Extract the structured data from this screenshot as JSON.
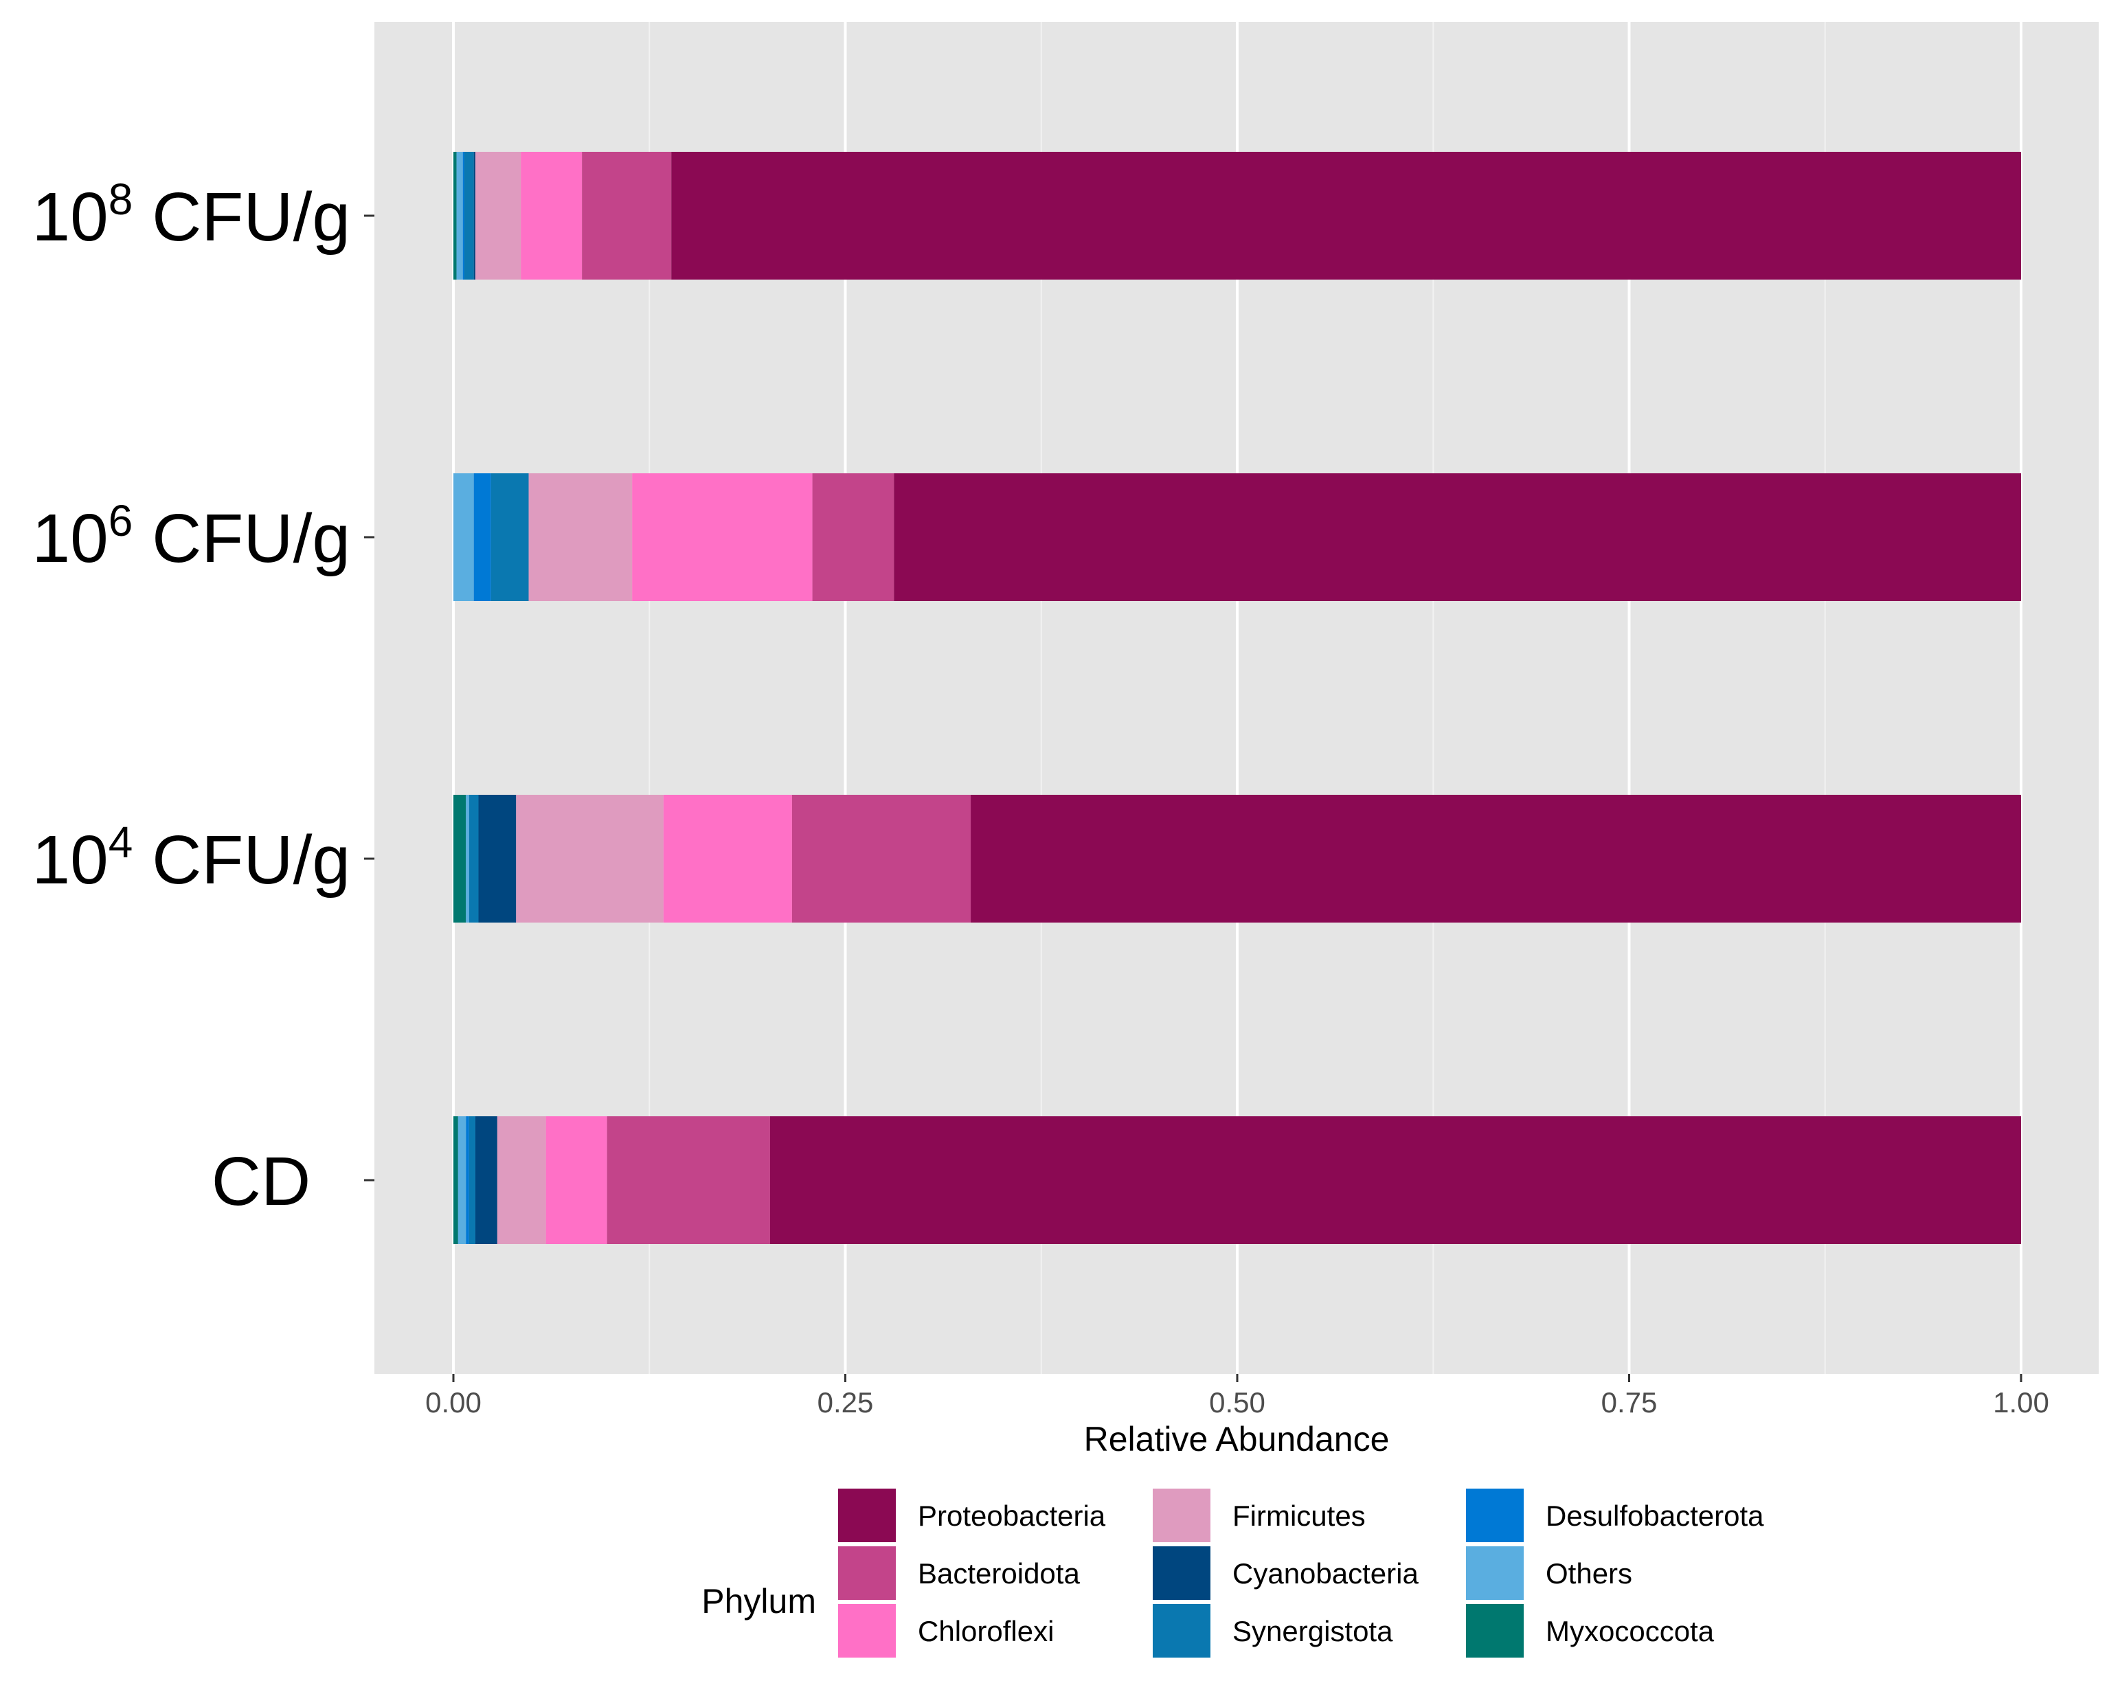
{
  "chart_data": {
    "type": "bar",
    "orientation": "horizontal",
    "stacked": true,
    "categories": [
      {
        "base": "10",
        "sup": "8",
        "suffix": " CFU/g"
      },
      {
        "base": "10",
        "sup": "6",
        "suffix": " CFU/g"
      },
      {
        "base": "10",
        "sup": "4",
        "suffix": " CFU/g"
      },
      {
        "base": "CD",
        "sup": "",
        "suffix": ""
      }
    ],
    "xlabel": "Relative Abundance",
    "xlim": [
      0,
      1
    ],
    "xticks": [
      "0.00",
      "0.25",
      "0.50",
      "0.75",
      "1.00"
    ],
    "grid": true,
    "legend": {
      "title": "Phylum",
      "position": "bottom"
    },
    "series": [
      {
        "name": "Myxococcota",
        "color": "#00786f",
        "values": [
          0.002,
          0.0,
          0.008,
          0.003
        ]
      },
      {
        "name": "Others",
        "color": "#5aaee0",
        "values": [
          0.004,
          0.013,
          0.002,
          0.005
        ]
      },
      {
        "name": "Desulfobacterota",
        "color": "#0079d5",
        "values": [
          0.001,
          0.011,
          0.0,
          0.002
        ]
      },
      {
        "name": "Synergistota",
        "color": "#0a78b0",
        "values": [
          0.006,
          0.024,
          0.006,
          0.004
        ]
      },
      {
        "name": "Cyanobacteria",
        "color": "#00467f",
        "values": [
          0.001,
          0.0,
          0.024,
          0.014
        ]
      },
      {
        "name": "Firmicutes",
        "color": "#df9bbf",
        "values": [
          0.029,
          0.066,
          0.094,
          0.031
        ]
      },
      {
        "name": "Chloroflexi",
        "color": "#ff70c6",
        "values": [
          0.039,
          0.115,
          0.082,
          0.039
        ]
      },
      {
        "name": "Bacteroidota",
        "color": "#c3448a",
        "values": [
          0.057,
          0.052,
          0.114,
          0.104
        ]
      },
      {
        "name": "Proteobacteria",
        "color": "#8b0953",
        "values": [
          0.861,
          0.719,
          0.67,
          0.798
        ]
      }
    ],
    "legend_order": [
      "Proteobacteria",
      "Bacteroidota",
      "Chloroflexi",
      "Firmicutes",
      "Cyanobacteria",
      "Synergistota",
      "Desulfobacterota",
      "Others",
      "Myxococcota"
    ]
  }
}
